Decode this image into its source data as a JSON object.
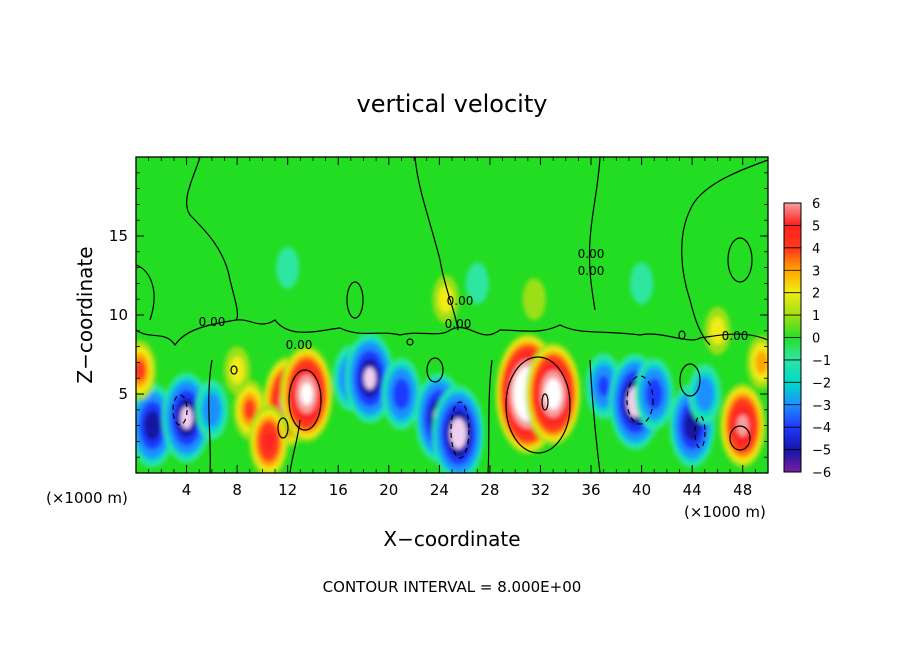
{
  "chart_data": {
    "type": "heatmap",
    "title": "vertical velocity",
    "xlabel": "X−coordinate",
    "ylabel": "Z−coordinate",
    "x_unit_left": "(×1000 m)",
    "x_unit_right": "(×1000 m)",
    "xlim": [
      0,
      50
    ],
    "ylim": [
      0,
      20
    ],
    "xticks": [
      4,
      8,
      12,
      16,
      20,
      24,
      28,
      32,
      36,
      40,
      44,
      48
    ],
    "yticks": [
      5,
      10,
      15
    ],
    "colorbar": {
      "ticks": [
        "6",
        "5",
        "4",
        "3",
        "2",
        "1",
        "0",
        "−1",
        "−2",
        "−3",
        "−4",
        "−5",
        "−6"
      ],
      "range": [
        -6,
        6
      ]
    },
    "contour_label": "0.00",
    "contour_interval_note": "CONTOUR INTERVAL = 8.000E+00",
    "cells": [
      {
        "x": 1.3,
        "z": 3.0,
        "w": -8
      },
      {
        "x": 4.0,
        "z": 3.5,
        "w": -9
      },
      {
        "x": 6.0,
        "z": 4.0,
        "w": -4
      },
      {
        "x": 9.0,
        "z": 4.0,
        "w": 4
      },
      {
        "x": 12.0,
        "z": 4.5,
        "w": 9
      },
      {
        "x": 13.5,
        "z": 5.0,
        "w": 10
      },
      {
        "x": 10.5,
        "z": 2.0,
        "w": 6
      },
      {
        "x": 17.0,
        "z": 6.0,
        "w": -5
      },
      {
        "x": 18.5,
        "z": 6.0,
        "w": -9
      },
      {
        "x": 21.0,
        "z": 5.0,
        "w": -6
      },
      {
        "x": 24.0,
        "z": 3.5,
        "w": -9
      },
      {
        "x": 25.5,
        "z": 2.5,
        "w": -10
      },
      {
        "x": 31.0,
        "z": 5.0,
        "w": 14
      },
      {
        "x": 33.0,
        "z": 5.0,
        "w": 11
      },
      {
        "x": 31.5,
        "z": 11.0,
        "w": 1
      },
      {
        "x": 37.0,
        "z": 5.5,
        "w": -5
      },
      {
        "x": 39.5,
        "z": 4.5,
        "w": -10
      },
      {
        "x": 41.0,
        "z": 5.0,
        "w": -6
      },
      {
        "x": 44.0,
        "z": 3.0,
        "w": -8
      },
      {
        "x": 45.0,
        "z": 5.0,
        "w": -4
      },
      {
        "x": 48.0,
        "z": 3.0,
        "w": 8
      },
      {
        "x": 49.5,
        "z": 7.0,
        "w": 3
      },
      {
        "x": 0.3,
        "z": 6.5,
        "w": 4
      },
      {
        "x": 24.5,
        "z": 11.0,
        "w": 2
      },
      {
        "x": 46.0,
        "z": 9.0,
        "w": 2
      },
      {
        "x": 8.0,
        "z": 6.5,
        "w": 2
      },
      {
        "x": 12.0,
        "z": 13.0,
        "w": -1
      },
      {
        "x": 27.0,
        "z": 12.0,
        "w": -1
      },
      {
        "x": 40.0,
        "z": 12.0,
        "w": -1
      }
    ]
  }
}
